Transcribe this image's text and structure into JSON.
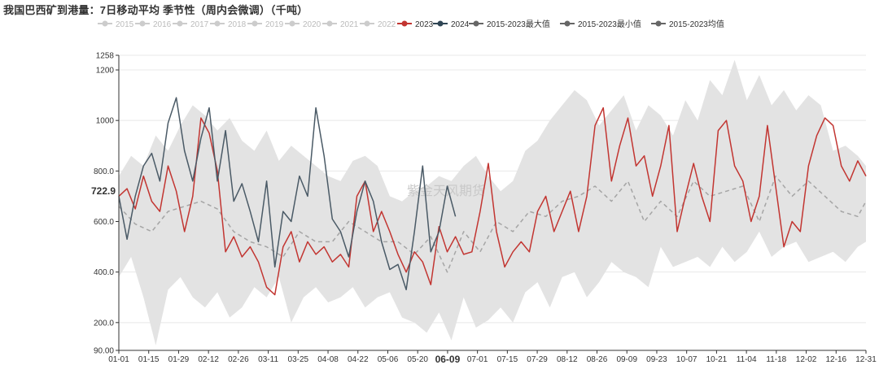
{
  "chart_data": {
    "type": "line",
    "title": "我国巴西矿到港量：7日移动平均 季节性（周内会微调）（千吨）",
    "watermark": "紫金天风期货",
    "ylim": [
      90,
      1258
    ],
    "y_tick_labels": [
      {
        "value": 1258,
        "label": "1258"
      },
      {
        "value": 1200,
        "label": "1200"
      },
      {
        "value": 1000,
        "label": "1000"
      },
      {
        "value": 800,
        "label": "800.0"
      },
      {
        "value": 600,
        "label": "600.0"
      },
      {
        "value": 400,
        "label": "400.0"
      },
      {
        "value": 200,
        "label": "200.0"
      },
      {
        "value": 90,
        "label": "90.00"
      }
    ],
    "y_pointer_label": "722.9",
    "y_pointer_value": 722.9,
    "x_tick_labels": [
      "01-01",
      "01-15",
      "01-29",
      "02-12",
      "02-26",
      "03-11",
      "03-25",
      "04-08",
      "04-22",
      "05-06",
      "05-20",
      "06-09",
      "07-01",
      "07-15",
      "07-29",
      "08-12",
      "08-26",
      "09-09",
      "09-23",
      "10-07",
      "10-21",
      "11-04",
      "11-18",
      "12-02",
      "12-16",
      "12-31"
    ],
    "x_pointer_label": "06-09",
    "x_range_days": [
      0,
      364
    ],
    "legend": [
      {
        "name": "2015",
        "color": "#cccccc",
        "active": false
      },
      {
        "name": "2016",
        "color": "#cccccc",
        "active": false
      },
      {
        "name": "2017",
        "color": "#cccccc",
        "active": false
      },
      {
        "name": "2018",
        "color": "#cccccc",
        "active": false
      },
      {
        "name": "2019",
        "color": "#cccccc",
        "active": false
      },
      {
        "name": "2020",
        "color": "#cccccc",
        "active": false
      },
      {
        "name": "2021",
        "color": "#cccccc",
        "active": false
      },
      {
        "name": "2022",
        "color": "#cccccc",
        "active": false
      },
      {
        "name": "2023",
        "color": "#c23531",
        "active": true
      },
      {
        "name": "2024",
        "color": "#2f4554",
        "active": true
      },
      {
        "name": "2015-2023最大值",
        "color": "#666666",
        "active": true
      },
      {
        "name": "2015-2023最小值",
        "color": "#666666",
        "active": true
      },
      {
        "name": "2015-2023均值",
        "color": "#666666",
        "active": true
      }
    ],
    "colors": {
      "y2023": "#c23531",
      "y2024": "#4a5a66",
      "band": "#e3e3e3",
      "mean": "#a5a5a5"
    },
    "series": [
      {
        "name": "2023",
        "x": [
          0,
          4,
          8,
          12,
          16,
          20,
          24,
          28,
          32,
          36,
          40,
          44,
          48,
          52,
          56,
          60,
          64,
          68,
          72,
          76,
          80,
          84,
          88,
          92,
          96,
          100,
          104,
          108,
          112,
          116,
          120,
          124,
          128,
          132,
          136,
          140,
          144,
          148,
          152,
          156,
          160,
          164,
          168,
          172,
          176,
          180,
          184,
          188,
          192,
          196,
          200,
          204,
          208,
          212,
          216,
          220,
          224,
          228,
          232,
          236,
          240,
          244,
          248,
          252,
          256,
          260,
          264,
          268,
          272,
          276,
          280,
          284,
          288,
          292,
          296,
          300,
          304,
          308,
          312,
          316,
          320,
          324,
          328,
          332,
          336,
          340,
          344,
          348,
          352,
          356,
          360,
          364
        ],
        "values": [
          700,
          730,
          650,
          780,
          680,
          640,
          820,
          720,
          560,
          700,
          1010,
          950,
          800,
          480,
          540,
          460,
          500,
          440,
          340,
          310,
          500,
          560,
          440,
          520,
          470,
          500,
          440,
          470,
          420,
          700,
          760,
          560,
          640,
          560,
          470,
          400,
          480,
          440,
          350,
          580,
          480,
          540,
          470,
          480,
          640,
          830,
          560,
          420,
          480,
          520,
          480,
          640,
          700,
          560,
          640,
          720,
          560,
          700,
          980,
          1050,
          760,
          900,
          1010,
          820,
          860,
          700,
          820,
          980,
          560,
          700,
          830,
          700,
          600,
          960,
          1000,
          820,
          760,
          600,
          700,
          980,
          740,
          500,
          600,
          560,
          820,
          940,
          1010,
          980,
          820,
          760,
          840,
          780
        ]
      },
      {
        "name": "2024",
        "x": [
          0,
          4,
          8,
          12,
          16,
          20,
          24,
          28,
          32,
          36,
          40,
          44,
          48,
          52,
          56,
          60,
          64,
          68,
          72,
          76,
          80,
          84,
          88,
          92,
          96,
          100,
          104,
          108,
          112,
          116,
          120,
          124,
          128,
          132,
          136,
          140,
          144,
          148,
          152,
          156,
          160,
          164
        ],
        "values": [
          700,
          530,
          700,
          820,
          870,
          760,
          990,
          1090,
          880,
          760,
          930,
          1050,
          760,
          960,
          680,
          750,
          640,
          520,
          760,
          420,
          640,
          600,
          780,
          700,
          1050,
          860,
          610,
          560,
          460,
          640,
          760,
          680,
          520,
          410,
          430,
          330,
          560,
          820,
          480,
          560,
          740,
          620
        ]
      },
      {
        "name": "2015-2023最大值",
        "x": [
          0,
          6,
          12,
          18,
          24,
          30,
          36,
          42,
          48,
          54,
          60,
          66,
          72,
          78,
          84,
          90,
          96,
          102,
          108,
          114,
          120,
          126,
          132,
          138,
          144,
          150,
          156,
          162,
          168,
          174,
          180,
          186,
          192,
          198,
          204,
          210,
          216,
          222,
          228,
          234,
          240,
          246,
          252,
          258,
          264,
          270,
          276,
          282,
          288,
          294,
          300,
          306,
          312,
          318,
          324,
          330,
          336,
          342,
          348,
          354,
          360,
          364
        ],
        "values": [
          780,
          860,
          820,
          940,
          880,
          980,
          1060,
          1020,
          960,
          1010,
          920,
          880,
          960,
          840,
          900,
          860,
          820,
          780,
          760,
          840,
          860,
          820,
          700,
          680,
          720,
          740,
          780,
          760,
          820,
          860,
          780,
          720,
          760,
          880,
          920,
          1000,
          1060,
          1120,
          1080,
          980,
          1040,
          1100,
          960,
          1060,
          1020,
          940,
          1080,
          1000,
          1160,
          1100,
          1240,
          1080,
          1180,
          1060,
          1120,
          1040,
          1100,
          1060,
          880,
          900,
          860,
          820
        ]
      },
      {
        "name": "2015-2023最小值",
        "x": [
          0,
          6,
          12,
          18,
          24,
          30,
          36,
          42,
          48,
          54,
          60,
          66,
          72,
          78,
          84,
          90,
          96,
          102,
          108,
          114,
          120,
          126,
          132,
          138,
          144,
          150,
          156,
          162,
          168,
          174,
          180,
          186,
          192,
          198,
          204,
          210,
          216,
          222,
          228,
          234,
          240,
          246,
          252,
          258,
          264,
          270,
          276,
          282,
          288,
          294,
          300,
          306,
          312,
          318,
          324,
          330,
          336,
          342,
          348,
          354,
          360,
          364
        ],
        "values": [
          380,
          460,
          300,
          110,
          330,
          380,
          300,
          260,
          320,
          220,
          260,
          340,
          300,
          380,
          200,
          300,
          340,
          280,
          300,
          340,
          260,
          300,
          320,
          220,
          200,
          160,
          240,
          130,
          300,
          180,
          210,
          260,
          200,
          320,
          360,
          260,
          380,
          400,
          300,
          360,
          440,
          400,
          380,
          340,
          500,
          420,
          440,
          460,
          420,
          500,
          440,
          480,
          560,
          460,
          500,
          520,
          440,
          460,
          480,
          440,
          500,
          520
        ]
      },
      {
        "name": "2015-2023均值",
        "x": [
          0,
          8,
          16,
          24,
          32,
          40,
          48,
          56,
          64,
          72,
          80,
          88,
          96,
          104,
          112,
          120,
          128,
          136,
          144,
          152,
          160,
          168,
          176,
          184,
          192,
          200,
          208,
          216,
          224,
          232,
          240,
          248,
          256,
          264,
          272,
          280,
          288,
          296,
          304,
          312,
          320,
          328,
          336,
          344,
          352,
          360,
          364
        ],
        "values": [
          660,
          590,
          560,
          640,
          660,
          680,
          650,
          560,
          520,
          500,
          460,
          560,
          520,
          520,
          600,
          560,
          520,
          520,
          470,
          540,
          400,
          560,
          480,
          600,
          560,
          640,
          620,
          680,
          700,
          740,
          680,
          760,
          600,
          680,
          620,
          760,
          700,
          720,
          740,
          600,
          780,
          700,
          760,
          700,
          640,
          620,
          680
        ]
      }
    ]
  }
}
